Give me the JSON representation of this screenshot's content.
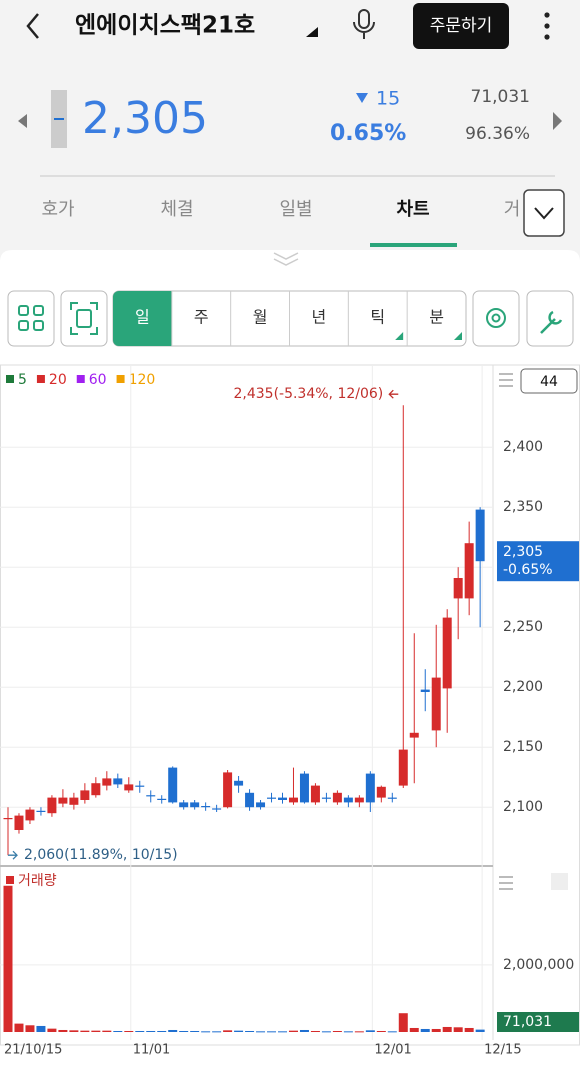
{
  "header": {
    "title": "엔에이치스팩21호",
    "order_button": "주문하기"
  },
  "quote": {
    "price": "2,305",
    "change": "15",
    "change_rate": "0.65%",
    "volume": "71,031",
    "ratio": "96.36%"
  },
  "tabs": [
    "호가",
    "체결",
    "일별",
    "차트",
    "거"
  ],
  "periods": [
    "일",
    "주",
    "월",
    "년",
    "틱",
    "분"
  ],
  "chart_data": {
    "type": "candlestick",
    "ma_legend": [
      {
        "name": "5",
        "color": "#1e7a3a"
      },
      {
        "name": "20",
        "color": "#d62b2b"
      },
      {
        "name": "60",
        "color": "#a020f0"
      },
      {
        "name": "120",
        "color": "#f0a000"
      }
    ],
    "count": "44",
    "up_color": "#d62b2b",
    "down_color": "#1f6fd0",
    "categories": [
      "21/10/15",
      null,
      null,
      null,
      null,
      null,
      null,
      null,
      null,
      null,
      null,
      "11/01",
      null,
      null,
      null,
      null,
      null,
      null,
      null,
      null,
      null,
      null,
      null,
      null,
      null,
      null,
      null,
      null,
      null,
      null,
      null,
      null,
      null,
      "12/01",
      null,
      null,
      null,
      null,
      null,
      null,
      null,
      null,
      null,
      "12/15"
    ],
    "open": [
      2090,
      2081,
      2089,
      2097,
      2095,
      2103,
      2102,
      2106,
      2110,
      2118,
      2124,
      2114,
      2118,
      2110,
      2107,
      2133,
      2104,
      2104,
      2101,
      2099,
      2100,
      2122,
      2112,
      2104,
      2108,
      2108,
      2104,
      2128,
      2104,
      2108,
      2104,
      2108,
      2104,
      2128,
      2108,
      2108,
      2118,
      2158,
      2198,
      2164,
      2199,
      2274,
      2274,
      2348
    ],
    "high": [
      2100,
      2095,
      2100,
      2100,
      2110,
      2115,
      2112,
      2120,
      2125,
      2130,
      2128,
      2125,
      2122,
      2114,
      2110,
      2134,
      2106,
      2106,
      2104,
      2102,
      2131,
      2126,
      2115,
      2106,
      2112,
      2112,
      2133,
      2130,
      2120,
      2112,
      2114,
      2110,
      2110,
      2130,
      2118,
      2112,
      2435,
      2245,
      2215,
      2252,
      2265,
      2300,
      2338,
      2350
    ],
    "low": [
      2060,
      2078,
      2086,
      2093,
      2092,
      2100,
      2098,
      2103,
      2108,
      2114,
      2116,
      2112,
      2112,
      2104,
      2103,
      2103,
      2098,
      2098,
      2097,
      2096,
      2099,
      2112,
      2097,
      2098,
      2104,
      2103,
      2102,
      2103,
      2102,
      2104,
      2102,
      2100,
      2100,
      2096,
      2104,
      2104,
      2116,
      2120,
      2180,
      2150,
      2162,
      2240,
      2260,
      2250
    ],
    "close": [
      2091,
      2093,
      2098,
      2096,
      2108,
      2108,
      2108,
      2114,
      2120,
      2124,
      2119,
      2119,
      2117,
      2109,
      2106,
      2104,
      2100,
      2100,
      2100,
      2098,
      2129,
      2118,
      2100,
      2100,
      2107,
      2106,
      2108,
      2104,
      2118,
      2107,
      2112,
      2104,
      2108,
      2104,
      2117,
      2107,
      2148,
      2162,
      2196,
      2208,
      2258,
      2291,
      2320,
      2305
    ],
    "ylim": [
      2054,
      2466
    ],
    "yticks": [
      {
        "value": 2100,
        "label": "2,100"
      },
      {
        "value": 2150,
        "label": "2,150"
      },
      {
        "value": 2200,
        "label": "2,200"
      },
      {
        "value": 2250,
        "label": "2,250"
      },
      {
        "value": 2300,
        "label": "2,300"
      },
      {
        "value": 2350,
        "label": "2,350"
      },
      {
        "value": 2400,
        "label": "2,400"
      }
    ],
    "high_note": "2,435(-5.34%, 12/06)",
    "low_note": "2,060(11.89%, 10/15)",
    "price_tag": "2,305",
    "change_tag": "-0.65%",
    "volume": {
      "title": "거래량",
      "values": [
        4360000,
        250000,
        200000,
        180000,
        100000,
        60000,
        50000,
        40000,
        40000,
        40000,
        30000,
        30000,
        30000,
        30000,
        30000,
        60000,
        30000,
        30000,
        20000,
        20000,
        50000,
        40000,
        30000,
        20000,
        20000,
        20000,
        40000,
        60000,
        30000,
        20000,
        30000,
        20000,
        20000,
        50000,
        30000,
        20000,
        560000,
        120000,
        90000,
        90000,
        150000,
        140000,
        120000,
        71031
      ],
      "ylim": [
        0,
        4800000
      ],
      "yticks": [
        {
          "value": 2000000,
          "label": "2,000,000"
        }
      ],
      "tag": "71,031",
      "tag_color": "#1e7a4e"
    }
  }
}
